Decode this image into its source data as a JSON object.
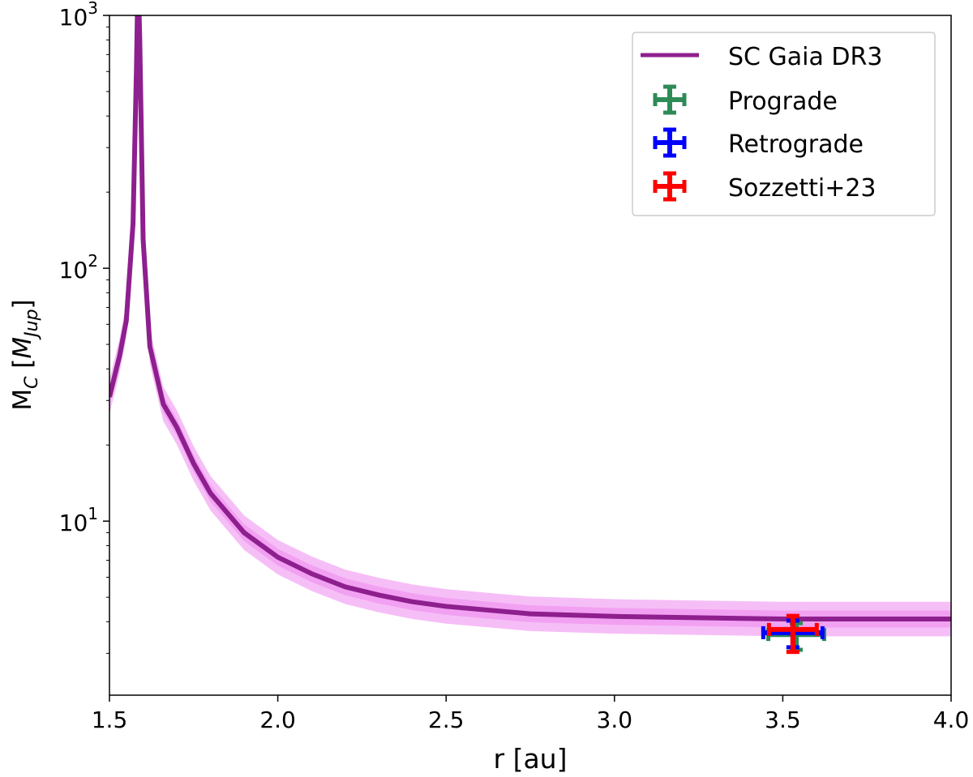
{
  "chart_data": {
    "type": "line",
    "xlabel": "r [au]",
    "ylabel": {
      "main": "M",
      "sub": "C",
      "unit_open": " [",
      "unit_main": "M",
      "unit_sub": "Jup",
      "unit_close": "]"
    },
    "xlim": [
      1.5,
      4.0
    ],
    "ylim": [
      2.05,
      1000
    ],
    "yscale": "log",
    "xticks": [
      "1.5",
      "2.0",
      "2.5",
      "3.0",
      "3.5",
      "4.0"
    ],
    "yticks": [
      {
        "value": 10,
        "base": "10",
        "exp": "1"
      },
      {
        "value": 100,
        "base": "10",
        "exp": "2"
      },
      {
        "value": 1000,
        "base": "10",
        "exp": "3"
      }
    ],
    "grid": false,
    "legend_position": "top-right",
    "curve": {
      "name": "SC Gaia DR3",
      "color": "#8e1f8e",
      "band_color": "#ee88ee",
      "band_inner_factor": 1.08,
      "band_outer_factor": 1.17,
      "x": [
        1.5,
        1.53,
        1.55,
        1.57,
        1.58,
        1.585,
        1.59,
        1.6,
        1.62,
        1.65,
        1.66,
        1.7,
        1.75,
        1.8,
        1.9,
        2.0,
        2.1,
        2.2,
        2.3,
        2.4,
        2.5,
        2.75,
        3.0,
        3.5,
        4.0
      ],
      "y": [
        31,
        45,
        62,
        150,
        600,
        1500,
        800,
        130,
        49,
        33,
        29,
        23.5,
        16.9,
        12.9,
        9.0,
        7.2,
        6.2,
        5.5,
        5.1,
        4.8,
        4.6,
        4.3,
        4.2,
        4.1,
        4.1
      ]
    },
    "points": [
      {
        "name": "Prograde",
        "color": "#2e8b57",
        "x": 3.54,
        "y": 3.56,
        "xerr": 0.083,
        "ylo": 3.1,
        "yhi": 3.95
      },
      {
        "name": "Retrograde",
        "color": "#0000ff",
        "x": 3.53,
        "y": 3.62,
        "xerr": 0.088,
        "ylo": 3.17,
        "yhi": 4.04
      },
      {
        "name": "Sozzetti+23",
        "color": "#ff0000",
        "x": 3.53,
        "y": 3.73,
        "xerr": 0.071,
        "ylo": 3.04,
        "yhi": 4.22
      }
    ]
  }
}
